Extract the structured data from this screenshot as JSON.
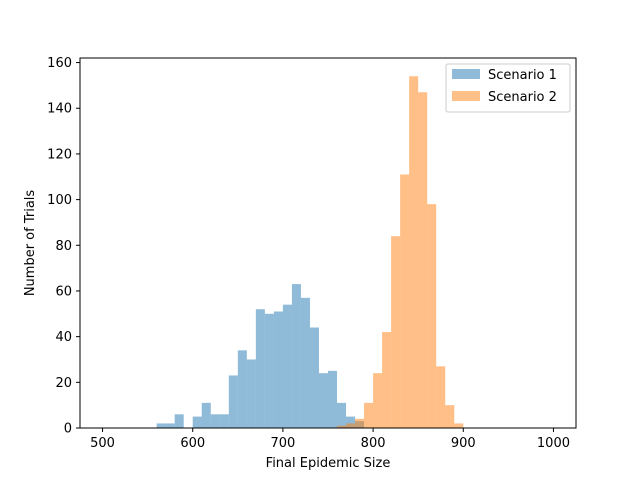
{
  "chart_data": {
    "type": "bar",
    "title": "",
    "xlabel": "Final Epidemic Size",
    "ylabel": "Number of Trials",
    "xlim": [
      475,
      1025
    ],
    "ylim": [
      0,
      162
    ],
    "x_ticks": [
      500,
      600,
      700,
      800,
      900,
      1000
    ],
    "y_ticks": [
      0,
      20,
      40,
      60,
      80,
      100,
      120,
      140,
      160
    ],
    "bin_width": 10,
    "grid": false,
    "legend_position": "top-right",
    "series": [
      {
        "name": "Scenario 1",
        "color": "#1f77b4",
        "opacity": 0.5,
        "bin_starts": [
          560,
          570,
          580,
          590,
          600,
          610,
          620,
          630,
          640,
          650,
          660,
          670,
          680,
          690,
          700,
          710,
          720,
          730,
          740,
          750,
          760,
          770,
          780
        ],
        "values": [
          2,
          2,
          6,
          0,
          5,
          11,
          6,
          6,
          23,
          34,
          30,
          52,
          50,
          51,
          54,
          63,
          57,
          44,
          24,
          25,
          11,
          5,
          3
        ]
      },
      {
        "name": "Scenario 2",
        "color": "#ff7f0e",
        "opacity": 0.5,
        "bin_starts": [
          760,
          770,
          780,
          790,
          800,
          810,
          820,
          830,
          840,
          850,
          860,
          870,
          880,
          890
        ],
        "values": [
          1,
          2,
          4,
          11,
          24,
          42,
          84,
          111,
          154,
          147,
          98,
          27,
          10,
          2
        ]
      }
    ]
  }
}
